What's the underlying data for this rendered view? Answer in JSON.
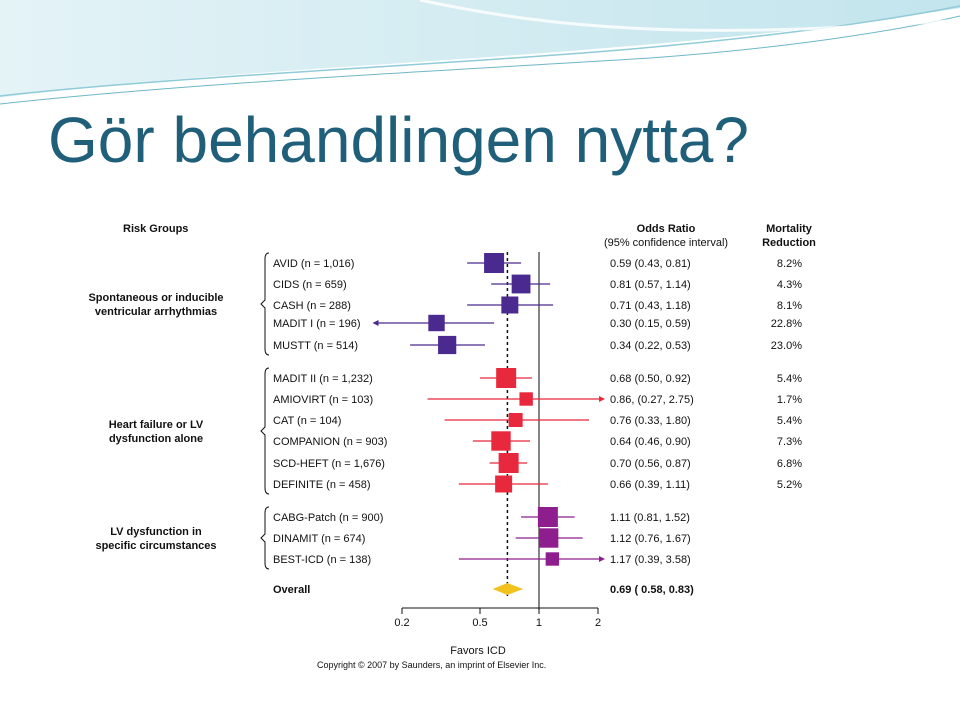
{
  "slide": {
    "title": "Gör behandlingen nytta?"
  },
  "colors": {
    "arrhythmia": "#4a2a8f",
    "heart_failure": "#e8283c",
    "lv_dysfunction": "#8e1e8e",
    "overall": "#f2c21c",
    "title": "#1f5f7a"
  },
  "chart_data": {
    "type": "forest",
    "header": {
      "risk_groups": "Risk Groups",
      "odds_ratio": "Odds Ratio",
      "odds_ratio_sub": "(95% confidence interval)",
      "mortality_line1": "Mortality",
      "mortality_line2": "Reduction"
    },
    "x_scale": "log",
    "xlim": [
      0.2,
      2
    ],
    "xticks": [
      "0.2",
      "0.5",
      "1",
      "2"
    ],
    "xlabel": "Favors ICD",
    "reference_line": 1,
    "overall_line": 0.69,
    "groups": [
      {
        "name_line1": "Spontaneous or inducible",
        "name_line2": "ventricular arrhythmias",
        "color_key": "arrhythmia",
        "studies": [
          {
            "label": "AVID (n = 1,016)",
            "or": 0.59,
            "lo": 0.43,
            "hi": 0.81,
            "or_text": "0.59 (0.43, 0.81)",
            "reduction": "8.2%",
            "weight": 1.0
          },
          {
            "label": "CIDS (n = 659)",
            "or": 0.81,
            "lo": 0.57,
            "hi": 1.14,
            "or_text": "0.81 (0.57, 1.14)",
            "reduction": "4.3%",
            "weight": 0.9
          },
          {
            "label": "CASH (n = 288)",
            "or": 0.71,
            "lo": 0.43,
            "hi": 1.18,
            "or_text": "0.71 (0.43, 1.18)",
            "reduction": "8.1%",
            "weight": 0.75
          },
          {
            "label": "MADIT I (n = 196)",
            "or": 0.3,
            "lo": 0.15,
            "hi": 0.59,
            "or_text": "0.30 (0.15, 0.59)",
            "reduction": "22.8%",
            "weight": 0.7
          },
          {
            "label": "MUSTT (n = 514)",
            "or": 0.34,
            "lo": 0.22,
            "hi": 0.53,
            "or_text": "0.34 (0.22, 0.53)",
            "reduction": "23.0%",
            "weight": 0.85
          }
        ]
      },
      {
        "name_line1": "Heart failure or LV",
        "name_line2": "dysfunction alone",
        "color_key": "heart_failure",
        "studies": [
          {
            "label": "MADIT II (n = 1,232)",
            "or": 0.68,
            "lo": 0.5,
            "hi": 0.92,
            "or_text": "0.68 (0.50, 0.92)",
            "reduction": "5.4%",
            "weight": 1.0
          },
          {
            "label": "AMIOVIRT (n = 103)",
            "or": 0.86,
            "lo": 0.27,
            "hi": 2.75,
            "or_text": "0.86, (0.27, 2.75)",
            "reduction": "1.7%",
            "weight": 0.45
          },
          {
            "label": "CAT (n = 104)",
            "or": 0.76,
            "lo": 0.33,
            "hi": 1.8,
            "or_text": "0.76 (0.33, 1.80)",
            "reduction": "5.4%",
            "weight": 0.5
          },
          {
            "label": "COMPANION (n = 903)",
            "or": 0.64,
            "lo": 0.46,
            "hi": 0.9,
            "or_text": "0.64 (0.46, 0.90)",
            "reduction": "7.3%",
            "weight": 0.95
          },
          {
            "label": "SCD-HEFT (n = 1,676)",
            "or": 0.7,
            "lo": 0.56,
            "hi": 0.87,
            "or_text": "0.70 (0.56, 0.87)",
            "reduction": "6.8%",
            "weight": 1.0
          },
          {
            "label": "DEFINITE (n = 458)",
            "or": 0.66,
            "lo": 0.39,
            "hi": 1.11,
            "or_text": "0.66 (0.39, 1.11)",
            "reduction": "5.2%",
            "weight": 0.75
          }
        ]
      },
      {
        "name_line1": "LV dysfunction in",
        "name_line2": "specific circumstances",
        "color_key": "lv_dysfunction",
        "studies": [
          {
            "label": "CABG-Patch (n = 900)",
            "or": 1.11,
            "lo": 0.81,
            "hi": 1.52,
            "or_text": "1.11 (0.81, 1.52)",
            "reduction": "",
            "weight": 1.0
          },
          {
            "label": "DINAMIT (n = 674)",
            "or": 1.12,
            "lo": 0.76,
            "hi": 1.67,
            "or_text": "1.12 (0.76, 1.67)",
            "reduction": "",
            "weight": 0.95
          },
          {
            "label": "BEST-ICD (n = 138)",
            "or": 1.17,
            "lo": 0.39,
            "hi": 3.58,
            "or_text": "1.17 (0.39, 3.58)",
            "reduction": "",
            "weight": 0.45
          }
        ]
      }
    ],
    "overall": {
      "label": "Overall",
      "or": 0.69,
      "lo": 0.58,
      "hi": 0.83,
      "or_text": "0.69 ( 0.58, 0.83)"
    },
    "copyright": "Copyright © 2007 by Saunders, an imprint of Elsevier Inc."
  }
}
